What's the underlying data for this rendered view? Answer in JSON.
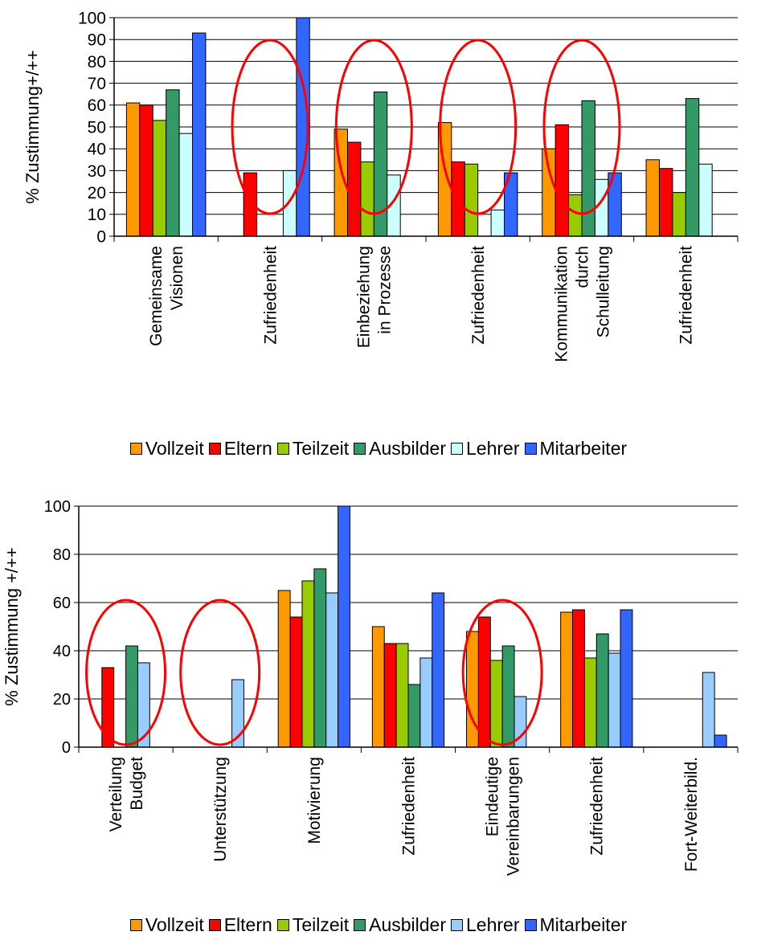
{
  "chart_data": [
    {
      "type": "bar",
      "ylabel": "% Zustimmung+/++",
      "ylim": [
        0,
        100
      ],
      "yticks": [
        0,
        10,
        20,
        30,
        40,
        50,
        60,
        70,
        80,
        90,
        100
      ],
      "grid": true,
      "legend_position": "bottom",
      "categories": [
        [
          "Gemeinsame",
          "Visionen"
        ],
        [
          "Zufriedenheit"
        ],
        [
          "Einbeziehung",
          "in Prozesse"
        ],
        [
          "Zufriedenheit"
        ],
        [
          "Kommunikation",
          "durch",
          "Schulleitung"
        ],
        [
          "Zufriedenheit"
        ]
      ],
      "series": [
        {
          "name": "Vollzeit",
          "color": "#FF9900",
          "values": [
            61,
            null,
            49,
            52,
            40,
            35
          ]
        },
        {
          "name": "Eltern",
          "color": "#FF0000",
          "values": [
            60,
            29,
            43,
            34,
            51,
            31
          ]
        },
        {
          "name": "Teilzeit",
          "color": "#99CC00",
          "values": [
            53,
            null,
            34,
            33,
            19,
            20
          ]
        },
        {
          "name": "Ausbilder",
          "color": "#339966",
          "values": [
            67,
            null,
            66,
            null,
            62,
            63
          ]
        },
        {
          "name": "Lehrer",
          "color": "#CCFFFF",
          "values": [
            47,
            30,
            28,
            12,
            26,
            33
          ]
        },
        {
          "name": "Mitarbeiter",
          "color": "#3366FF",
          "values": [
            93,
            100,
            null,
            29,
            29,
            null
          ]
        }
      ],
      "highlighted_categories": [
        1,
        2,
        3,
        4
      ]
    },
    {
      "type": "bar",
      "ylabel": "% Zustimmung +/++",
      "ylim": [
        0,
        100
      ],
      "yticks": [
        0,
        20,
        40,
        60,
        80,
        100
      ],
      "grid": true,
      "legend_position": "bottom",
      "categories": [
        [
          "Verteilung",
          "Budget"
        ],
        [
          "Unterstützung"
        ],
        [
          "Motivierung"
        ],
        [
          "Zufriedenheit"
        ],
        [
          "Eindeutige",
          "Vereinbarungen"
        ],
        [
          "Zufriedenheit"
        ],
        [
          "Fort-Weiterbild."
        ]
      ],
      "series": [
        {
          "name": "Vollzeit",
          "color": "#FF9900",
          "values": [
            null,
            null,
            65,
            50,
            48,
            56,
            null
          ]
        },
        {
          "name": "Eltern",
          "color": "#FF0000",
          "values": [
            33,
            null,
            54,
            43,
            54,
            57,
            null
          ]
        },
        {
          "name": "Teilzeit",
          "color": "#99CC00",
          "values": [
            null,
            null,
            69,
            43,
            36,
            37,
            null
          ]
        },
        {
          "name": "Ausbilder",
          "color": "#339966",
          "values": [
            42,
            null,
            74,
            26,
            42,
            47,
            null
          ]
        },
        {
          "name": "Lehrer",
          "color": "#99CCFF",
          "values": [
            35,
            28,
            64,
            37,
            21,
            39,
            31
          ]
        },
        {
          "name": "Mitarbeiter",
          "color": "#3366FF",
          "values": [
            null,
            null,
            100,
            64,
            null,
            57,
            5
          ]
        }
      ],
      "highlighted_categories": [
        0,
        1,
        4
      ]
    }
  ]
}
